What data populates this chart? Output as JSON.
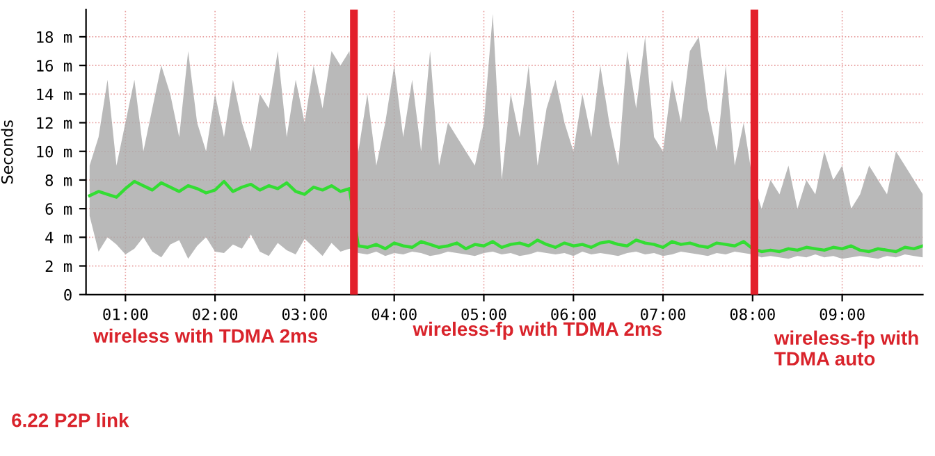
{
  "chart_data": {
    "type": "line",
    "ylabel": "Seconds",
    "x": [
      0.6,
      0.7,
      0.8,
      0.9,
      1.0,
      1.1,
      1.2,
      1.3,
      1.4,
      1.5,
      1.6,
      1.7,
      1.8,
      1.9,
      2.0,
      2.1,
      2.2,
      2.3,
      2.4,
      2.5,
      2.6,
      2.7,
      2.8,
      2.9,
      3.0,
      3.1,
      3.2,
      3.3,
      3.4,
      3.5,
      3.6,
      3.7,
      3.8,
      3.9,
      4.0,
      4.1,
      4.2,
      4.3,
      4.4,
      4.5,
      4.6,
      4.7,
      4.8,
      4.9,
      5.0,
      5.1,
      5.2,
      5.3,
      5.4,
      5.5,
      5.6,
      5.7,
      5.8,
      5.9,
      6.0,
      6.1,
      6.2,
      6.3,
      6.4,
      6.5,
      6.6,
      6.7,
      6.8,
      6.9,
      7.0,
      7.1,
      7.2,
      7.3,
      7.4,
      7.5,
      7.6,
      7.7,
      7.8,
      7.9,
      8.0,
      8.1,
      8.2,
      8.3,
      8.4,
      8.5,
      8.6,
      8.7,
      8.8,
      8.9,
      9.0,
      9.1,
      9.2,
      9.3,
      9.4,
      9.5,
      9.6,
      9.7,
      9.8,
      9.9
    ],
    "series": [
      {
        "color": "#33dd33",
        "values": [
          6.9,
          7.2,
          7.0,
          6.8,
          7.4,
          7.9,
          7.6,
          7.3,
          7.8,
          7.5,
          7.2,
          7.6,
          7.4,
          7.1,
          7.3,
          7.9,
          7.2,
          7.5,
          7.7,
          7.3,
          7.6,
          7.4,
          7.8,
          7.2,
          7.0,
          7.5,
          7.3,
          7.6,
          7.2,
          7.4,
          3.4,
          3.3,
          3.5,
          3.2,
          3.6,
          3.4,
          3.3,
          3.7,
          3.5,
          3.3,
          3.4,
          3.6,
          3.2,
          3.5,
          3.4,
          3.7,
          3.3,
          3.5,
          3.6,
          3.4,
          3.8,
          3.5,
          3.3,
          3.6,
          3.4,
          3.5,
          3.3,
          3.6,
          3.7,
          3.5,
          3.4,
          3.8,
          3.6,
          3.5,
          3.3,
          3.7,
          3.5,
          3.6,
          3.4,
          3.3,
          3.6,
          3.5,
          3.4,
          3.7,
          3.2,
          3.0,
          3.1,
          3.0,
          3.2,
          3.1,
          3.3,
          3.2,
          3.1,
          3.3,
          3.2,
          3.4,
          3.1,
          3.0,
          3.2,
          3.1,
          3.0,
          3.3,
          3.2,
          3.4
        ],
        "upper": [
          9,
          11,
          15,
          9,
          12,
          15,
          10,
          13,
          16,
          14,
          11,
          17,
          12,
          10,
          14,
          11,
          15,
          12,
          10,
          14,
          13,
          17,
          11,
          15,
          12,
          16,
          13,
          17,
          16,
          17,
          10,
          14,
          9,
          12,
          16,
          11,
          15,
          10,
          17,
          9,
          12,
          11,
          10,
          9,
          12,
          19.6,
          8,
          14,
          11,
          16,
          9,
          13,
          15,
          12,
          10,
          14,
          11,
          16,
          12,
          9,
          17,
          13,
          18,
          11,
          10,
          15,
          12,
          17,
          18,
          13,
          10,
          16,
          9,
          12,
          8,
          6,
          8,
          7,
          9,
          6,
          8,
          7,
          10,
          8,
          9,
          6,
          7,
          9,
          8,
          7,
          10,
          9,
          8,
          7
        ],
        "lower": [
          5.5,
          3,
          4,
          3.5,
          2.8,
          3.2,
          4,
          3,
          2.6,
          3.5,
          3.8,
          2.5,
          3.4,
          4,
          3,
          2.9,
          3.5,
          3.2,
          4.2,
          3,
          2.7,
          3.6,
          3.1,
          2.8,
          3.9,
          3.3,
          2.7,
          3.6,
          3,
          3.2,
          2.9,
          2.8,
          3.0,
          2.7,
          2.9,
          2.8,
          3.0,
          2.9,
          2.7,
          2.8,
          3.0,
          2.9,
          2.8,
          2.7,
          2.9,
          3.0,
          2.8,
          2.9,
          2.7,
          2.8,
          3.0,
          2.9,
          2.8,
          2.9,
          2.7,
          3.0,
          2.8,
          2.9,
          2.8,
          2.7,
          2.9,
          3.0,
          2.8,
          2.9,
          2.7,
          2.8,
          3.0,
          2.9,
          2.8,
          2.7,
          2.9,
          2.8,
          3.0,
          2.9,
          2.8,
          2.6,
          2.7,
          2.6,
          2.5,
          2.7,
          2.6,
          2.8,
          2.6,
          2.7,
          2.5,
          2.6,
          2.7,
          2.6,
          2.5,
          2.7,
          2.6,
          2.8,
          2.7,
          2.6
        ]
      }
    ],
    "xlim": [
      0.56,
      9.9
    ],
    "xticks": [
      {
        "value": 1,
        "label": "01:00"
      },
      {
        "value": 2,
        "label": "02:00"
      },
      {
        "value": 3,
        "label": "03:00"
      },
      {
        "value": 4,
        "label": "04:00"
      },
      {
        "value": 5,
        "label": "05:00"
      },
      {
        "value": 6,
        "label": "06:00"
      },
      {
        "value": 7,
        "label": "07:00"
      },
      {
        "value": 8,
        "label": "08:00"
      },
      {
        "value": 9,
        "label": "09:00"
      }
    ],
    "ylim": [
      0,
      19.9
    ],
    "yticks": [
      0,
      {
        "value": 2,
        "label": "2 m"
      },
      {
        "value": 4,
        "label": "4 m"
      },
      {
        "value": 6,
        "label": "6 m"
      },
      {
        "value": 8,
        "label": "8 m"
      },
      {
        "value": 10,
        "label": "10 m"
      },
      {
        "value": 12,
        "label": "12 m"
      },
      {
        "value": 14,
        "label": "14 m"
      },
      {
        "value": 16,
        "label": "16 m"
      },
      {
        "value": 18,
        "label": "18 m"
      }
    ],
    "ref_lines": [
      {
        "axis": "x",
        "value": 3.55,
        "color": "#e3202b"
      },
      {
        "axis": "x",
        "value": 8.02,
        "color": "#e3202b"
      }
    ],
    "annotations": [
      "wireless with TDMA 2ms",
      "wireless-fp with TDMA 2ms",
      "wireless-fp with\nTDMA auto",
      "6.22 P2P link"
    ],
    "grid": true,
    "marker": "none",
    "line_style": "solid"
  }
}
